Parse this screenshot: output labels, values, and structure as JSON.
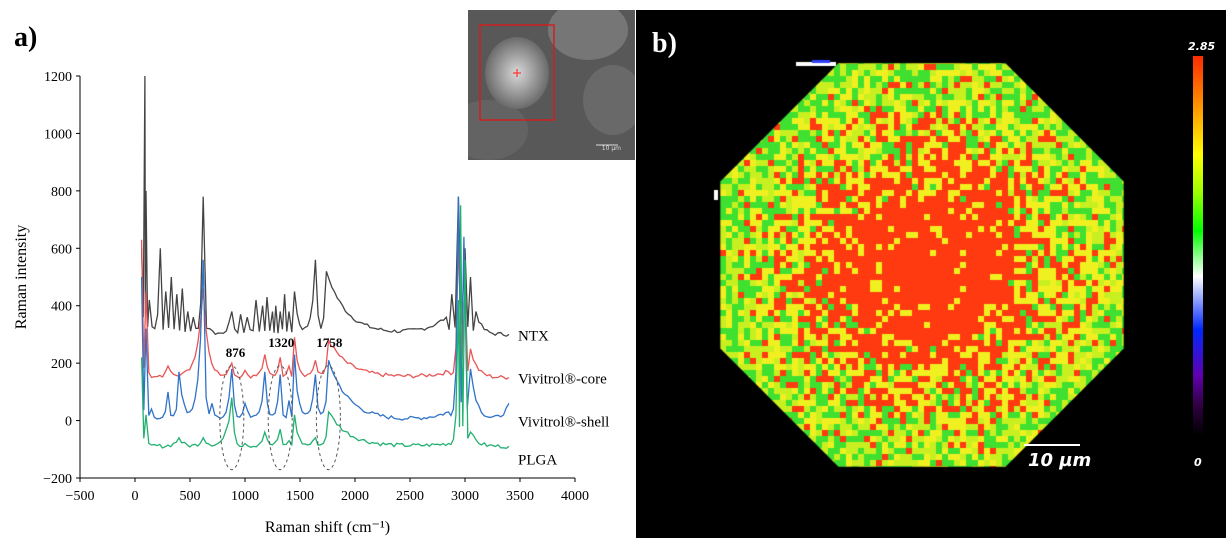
{
  "panel_labels": {
    "a": "a)",
    "b": "b)"
  },
  "chart_data": {
    "type": "line",
    "xlabel": "Raman shift (cm⁻¹)",
    "ylabel": "Raman intensity",
    "xlim": [
      -500,
      4000
    ],
    "ylim": [
      -200,
      1200
    ],
    "xticks": [
      -500,
      0,
      500,
      1000,
      1500,
      2000,
      2500,
      3000,
      3500,
      4000
    ],
    "yticks": [
      -200,
      0,
      200,
      400,
      600,
      800,
      1000,
      1200
    ],
    "grid": false,
    "series": [
      {
        "name": "NTX",
        "color": "#444444",
        "baseline": 300,
        "x": [
          60,
          90,
          100,
          130,
          230,
          280,
          330,
          380,
          430,
          480,
          530,
          620,
          680,
          880,
          960,
          1020,
          1100,
          1160,
          1200,
          1250,
          1280,
          1320,
          1360,
          1400,
          1450,
          1640,
          1740,
          2830,
          2880,
          2940,
          3000,
          3050,
          3100,
          3400
        ],
        "y": [
          600,
          1200,
          800,
          420,
          600,
          450,
          500,
          440,
          460,
          380,
          360,
          780,
          320,
          380,
          370,
          360,
          420,
          400,
          430,
          380,
          400,
          380,
          440,
          380,
          450,
          560,
          520,
          360,
          440,
          780,
          600,
          500,
          380,
          300
        ]
      },
      {
        "name": "Vivitrol®-core",
        "color": "#e85555",
        "baseline": 150,
        "x": [
          60,
          100,
          150,
          300,
          620,
          880,
          1000,
          1180,
          1320,
          1400,
          1450,
          1640,
          1760,
          2850,
          2940,
          3000,
          3050,
          3400
        ],
        "y": [
          630,
          450,
          150,
          190,
          460,
          200,
          175,
          230,
          220,
          190,
          290,
          210,
          280,
          170,
          620,
          450,
          250,
          150
        ]
      },
      {
        "name": "Vivitrol®-shell",
        "color": "#2f72c8",
        "baseline": 0,
        "x": [
          60,
          100,
          150,
          300,
          400,
          620,
          700,
          880,
          1000,
          1180,
          1320,
          1400,
          1450,
          1640,
          1760,
          2850,
          2940,
          2990,
          3050,
          3400
        ],
        "y": [
          500,
          320,
          40,
          100,
          170,
          560,
          60,
          180,
          60,
          170,
          160,
          70,
          230,
          160,
          210,
          30,
          780,
          640,
          180,
          60
        ]
      },
      {
        "name": "PLGA",
        "color": "#22b070",
        "baseline": -90,
        "x": [
          60,
          100,
          150,
          400,
          620,
          880,
          1000,
          1180,
          1320,
          1400,
          1450,
          1640,
          1760,
          2850,
          2940,
          2960,
          3000,
          3050,
          3400
        ],
        "y": [
          220,
          20,
          -85,
          -60,
          -60,
          80,
          -80,
          -40,
          -30,
          -70,
          20,
          -60,
          30,
          -80,
          420,
          750,
          560,
          -40,
          -90
        ]
      }
    ],
    "annotations": [
      {
        "text": "876",
        "x": 880,
        "y": 200
      },
      {
        "text": "1320",
        "x": 1320,
        "y": 250
      },
      {
        "text": "1758",
        "x": 1758,
        "y": 250
      }
    ]
  },
  "map": {
    "colorbar_max": "2.85",
    "colorbar_min": "0",
    "scale_bar": "10 µm",
    "inset_scale": "10 µm"
  }
}
